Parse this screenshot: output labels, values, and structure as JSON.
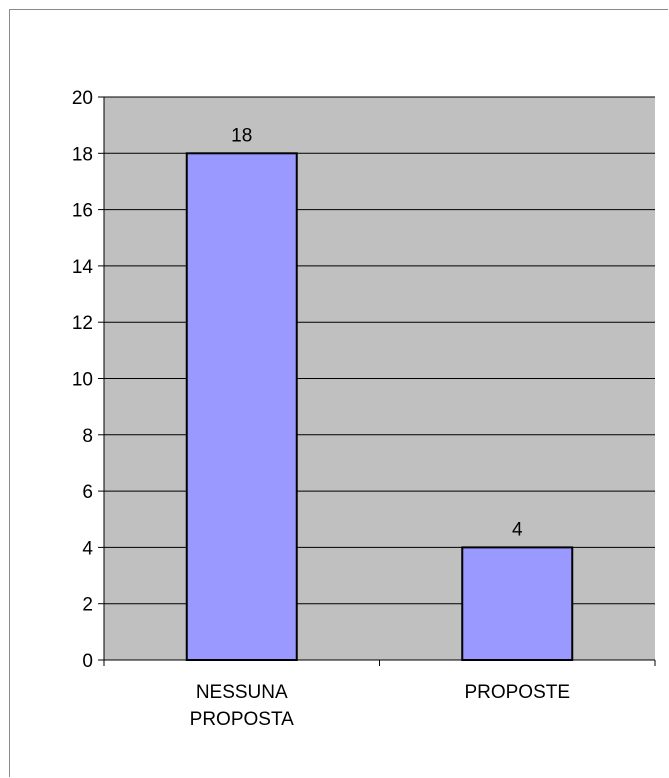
{
  "chart_data": {
    "type": "bar",
    "categories": [
      [
        "NESSUNA",
        "PROPOSTA"
      ],
      [
        "PROPOSTE"
      ]
    ],
    "values": [
      18,
      4
    ],
    "data_labels": [
      "18",
      "4"
    ],
    "title": "",
    "xlabel": "",
    "ylabel": "",
    "ylim": [
      0,
      20
    ],
    "yticks": [
      0,
      2,
      4,
      6,
      8,
      10,
      12,
      14,
      16,
      18,
      20
    ],
    "grid": true,
    "legend": "none",
    "colors": {
      "plot_background": "#c0c0c0",
      "bar_fill": "#9999ff",
      "bar_stroke": "#000000",
      "gridline": "#000000"
    }
  }
}
